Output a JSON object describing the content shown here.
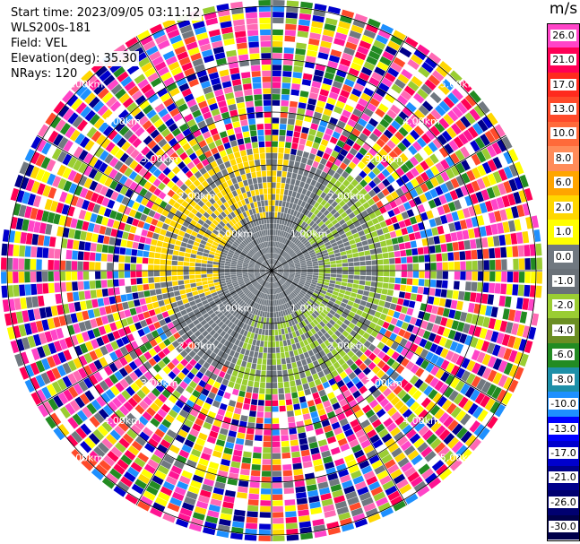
{
  "header": {
    "start_time": "Start time: 2023/09/05 03:11:12",
    "instrument": "WLS200s-181",
    "field": "Field: VEL",
    "elevation": "Elevation(deg): 35.30",
    "nrays": "NRays: 120"
  },
  "chart_data": {
    "type": "heatmap",
    "projection": "polar-ppi",
    "field": "VEL",
    "units": "m/s",
    "ring_labels": [
      "1.00km",
      "2.00km",
      "3.00km",
      "4.00km",
      "5.00km"
    ],
    "colorbar": {
      "unit_label": "m/s",
      "levels": [
        {
          "label": "26.0",
          "color": "#ff44c8"
        },
        {
          "label": "21.0",
          "color": "#ff0055"
        },
        {
          "label": "17.0",
          "color": "#ff2a1e"
        },
        {
          "label": "13.0",
          "color": "#ff4a2a"
        },
        {
          "label": "10.0",
          "color": "#ff6a3a"
        },
        {
          "label": "8.0",
          "color": "#ff8c5a"
        },
        {
          "label": "6.0",
          "color": "#ffa500"
        },
        {
          "label": "2.0",
          "color": "#ffd700"
        },
        {
          "label": "1.0",
          "color": "#ffff00"
        },
        {
          "label": "0.0",
          "color": "#707880"
        },
        {
          "label": "-1.0",
          "color": "#6a7178"
        },
        {
          "label": "-2.0",
          "color": "#9acd32"
        },
        {
          "label": "-4.0",
          "color": "#6b8e23"
        },
        {
          "label": "-6.0",
          "color": "#228b22"
        },
        {
          "label": "-8.0",
          "color": "#1e90a8"
        },
        {
          "label": "-10.0",
          "color": "#1e90ff"
        },
        {
          "label": "-13.0",
          "color": "#0000ff"
        },
        {
          "label": "-17.0",
          "color": "#0000cd"
        },
        {
          "label": "-21.0",
          "color": "#00008b"
        },
        {
          "label": "-26.0",
          "color": "#000070"
        },
        {
          "label": "-30.0",
          "color": "#00004a"
        }
      ]
    },
    "rays": 120,
    "regions": {
      "inner_mixed_color": "#707880",
      "positive_sector_color": "#ffd700",
      "negative_sector_color": "#9acd32",
      "noise_palette": [
        "#ff44c8",
        "#ff0055",
        "#ff1493",
        "#ffff00",
        "#0000cd",
        "#00008b",
        "#228b22",
        "#1e90ff",
        "#ff4a2a",
        "#9acd32",
        "#ffd700",
        "#707880",
        "#ffffff",
        "#ff69b4"
      ]
    }
  }
}
